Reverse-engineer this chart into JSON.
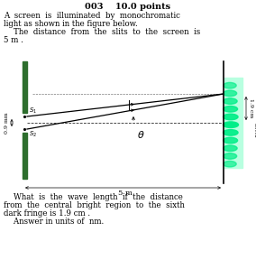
{
  "title": "003    10.0 points",
  "line1": "A  screen  is  illuminated  by  monochromatic",
  "line2": "light as shown in the figure below.",
  "line3": "    The  distance  from  the  slits  to  the  screen  is",
  "line4": "5 m .",
  "q1": "    What  is  the  wave  length  if  the  distance",
  "q2": "from  the  central  bright  region  to  the  sixth",
  "q3": "dark fringe is 1.9 cm .",
  "q4": "    Answer in units of  nm.",
  "bg_color": "#ffffff",
  "barrier_color": "#2d6e2d",
  "green_bright": "#00ee88",
  "green_mid": "#00cc66",
  "green_dark": "#009944",
  "cyan_bg": "#aaffdd"
}
